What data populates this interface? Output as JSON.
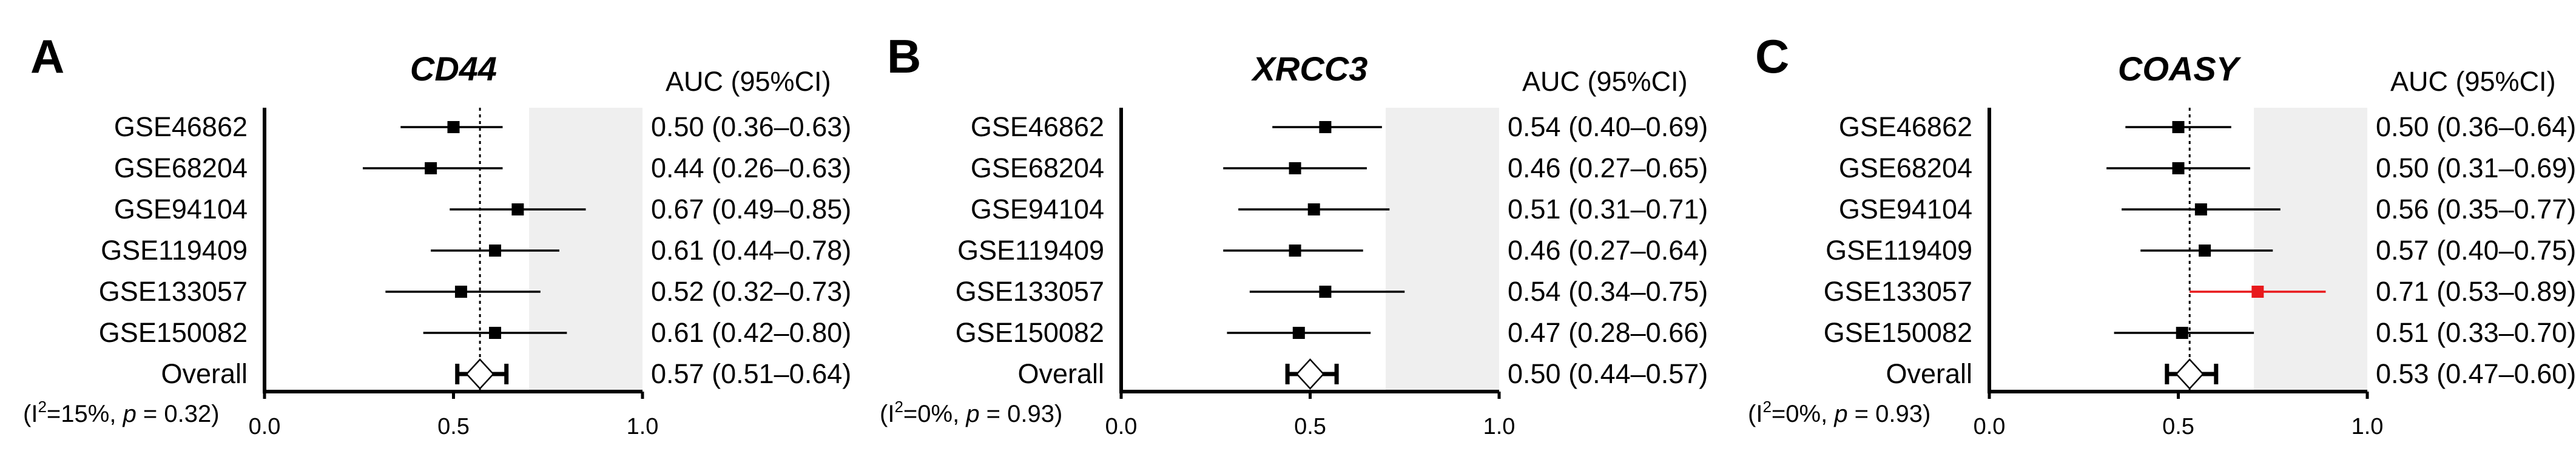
{
  "chart_data": [
    {
      "type": "forest",
      "panel_letter": "A",
      "title": "CD44",
      "column_header": "AUC (95%CI)",
      "heterogeneity": {
        "prefix": "(I",
        "sup": "2",
        "mid": "=15%, ",
        "p_label": "p",
        "suffix": " = 0.32)"
      },
      "xlim": [
        0.0,
        1.0
      ],
      "x_ticks": [
        "0.0",
        "0.5",
        "1.0"
      ],
      "reference_line": 0.57,
      "shaded_region": [
        0.7,
        1.0
      ],
      "rows": [
        {
          "label": "GSE46862",
          "auc": 0.5,
          "lo": 0.36,
          "hi": 0.63,
          "text": "0.50 (0.36–0.63)",
          "color": "#000000"
        },
        {
          "label": "GSE68204",
          "auc": 0.44,
          "lo": 0.26,
          "hi": 0.63,
          "text": "0.44 (0.26–0.63)",
          "color": "#000000"
        },
        {
          "label": "GSE94104",
          "auc": 0.67,
          "lo": 0.49,
          "hi": 0.85,
          "text": "0.67 (0.49–0.85)",
          "color": "#000000"
        },
        {
          "label": "GSE119409",
          "auc": 0.61,
          "lo": 0.44,
          "hi": 0.78,
          "text": "0.61 (0.44–0.78)",
          "color": "#000000"
        },
        {
          "label": "GSE133057",
          "auc": 0.52,
          "lo": 0.32,
          "hi": 0.73,
          "text": "0.52 (0.32–0.73)",
          "color": "#000000"
        },
        {
          "label": "GSE150082",
          "auc": 0.61,
          "lo": 0.42,
          "hi": 0.8,
          "text": "0.61 (0.42–0.80)",
          "color": "#000000"
        }
      ],
      "overall": {
        "label": "Overall",
        "auc": 0.57,
        "lo": 0.51,
        "hi": 0.64,
        "text": "0.57 (0.51–0.64)"
      }
    },
    {
      "type": "forest",
      "panel_letter": "B",
      "title": "XRCC3",
      "column_header": "AUC (95%CI)",
      "heterogeneity": {
        "prefix": "(I",
        "sup": "2",
        "mid": "=0%, ",
        "p_label": "p",
        "suffix": " = 0.93)"
      },
      "xlim": [
        0.0,
        1.0
      ],
      "x_ticks": [
        "0.0",
        "0.5",
        "1.0"
      ],
      "reference_line": null,
      "shaded_region": [
        0.7,
        1.0
      ],
      "rows": [
        {
          "label": "GSE46862",
          "auc": 0.54,
          "lo": 0.4,
          "hi": 0.69,
          "text": "0.54 (0.40–0.69)",
          "color": "#000000"
        },
        {
          "label": "GSE68204",
          "auc": 0.46,
          "lo": 0.27,
          "hi": 0.65,
          "text": "0.46 (0.27–0.65)",
          "color": "#000000"
        },
        {
          "label": "GSE94104",
          "auc": 0.51,
          "lo": 0.31,
          "hi": 0.71,
          "text": "0.51 (0.31–0.71)",
          "color": "#000000"
        },
        {
          "label": "GSE119409",
          "auc": 0.46,
          "lo": 0.27,
          "hi": 0.64,
          "text": "0.46 (0.27–0.64)",
          "color": "#000000"
        },
        {
          "label": "GSE133057",
          "auc": 0.54,
          "lo": 0.34,
          "hi": 0.75,
          "text": "0.54 (0.34–0.75)",
          "color": "#000000"
        },
        {
          "label": "GSE150082",
          "auc": 0.47,
          "lo": 0.28,
          "hi": 0.66,
          "text": "0.47 (0.28–0.66)",
          "color": "#000000"
        }
      ],
      "overall": {
        "label": "Overall",
        "auc": 0.5,
        "lo": 0.44,
        "hi": 0.57,
        "text": "0.50 (0.44–0.57)"
      }
    },
    {
      "type": "forest",
      "panel_letter": "C",
      "title": "COASY",
      "column_header": "AUC (95%CI)",
      "heterogeneity": {
        "prefix": "(I",
        "sup": "2",
        "mid": "=0%, ",
        "p_label": "p",
        "suffix": " = 0.93)"
      },
      "xlim": [
        0.0,
        1.0
      ],
      "x_ticks": [
        "0.0",
        "0.5",
        "1.0"
      ],
      "reference_line": 0.53,
      "shaded_region": [
        0.7,
        1.0
      ],
      "rows": [
        {
          "label": "GSE46862",
          "auc": 0.5,
          "lo": 0.36,
          "hi": 0.64,
          "text": "0.50 (0.36–0.64)",
          "color": "#000000"
        },
        {
          "label": "GSE68204",
          "auc": 0.5,
          "lo": 0.31,
          "hi": 0.69,
          "text": "0.50 (0.31–0.69)",
          "color": "#000000"
        },
        {
          "label": "GSE94104",
          "auc": 0.56,
          "lo": 0.35,
          "hi": 0.77,
          "text": "0.56 (0.35–0.77)",
          "color": "#000000"
        },
        {
          "label": "GSE119409",
          "auc": 0.57,
          "lo": 0.4,
          "hi": 0.75,
          "text": "0.57 (0.40–0.75)",
          "color": "#000000"
        },
        {
          "label": "GSE133057",
          "auc": 0.71,
          "lo": 0.53,
          "hi": 0.89,
          "text": "0.71 (0.53–0.89)",
          "color": "#e8191c"
        },
        {
          "label": "GSE150082",
          "auc": 0.51,
          "lo": 0.33,
          "hi": 0.7,
          "text": "0.51 (0.33–0.70)",
          "color": "#000000"
        }
      ],
      "overall": {
        "label": "Overall",
        "auc": 0.53,
        "lo": 0.47,
        "hi": 0.6,
        "text": "0.53 (0.47–0.60)"
      }
    }
  ]
}
